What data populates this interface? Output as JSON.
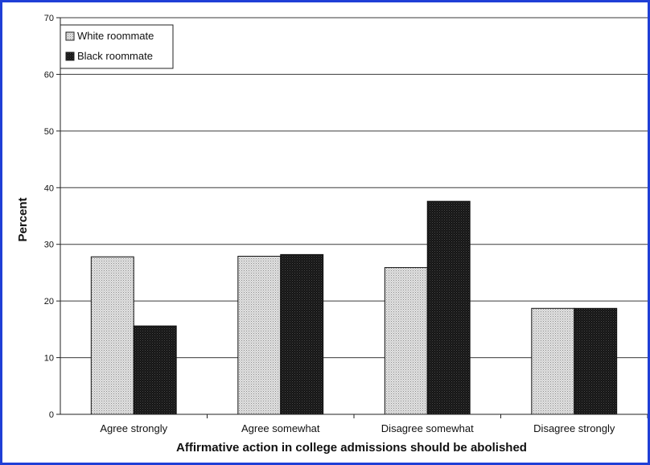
{
  "chart_data": {
    "type": "bar",
    "title": "",
    "xlabel": "Affirmative action in college admissions should be abolished",
    "ylabel": "Percent",
    "ylim": [
      0,
      70
    ],
    "yticks": [
      0,
      10,
      20,
      30,
      40,
      50,
      60,
      70
    ],
    "grid": true,
    "legend": "top-left",
    "categories": [
      "Agree strongly",
      "Agree somewhat",
      "Disagree somewhat",
      "Disagree strongly"
    ],
    "series": [
      {
        "name": "White roommate",
        "values": [
          27.8,
          27.9,
          25.9,
          18.7
        ],
        "color": "#d0d0d0",
        "pattern": "dotted-light"
      },
      {
        "name": "Black roommate",
        "values": [
          15.6,
          28.2,
          37.6,
          18.7
        ],
        "color": "#1a1a1a",
        "pattern": "dotted-dark"
      }
    ]
  }
}
